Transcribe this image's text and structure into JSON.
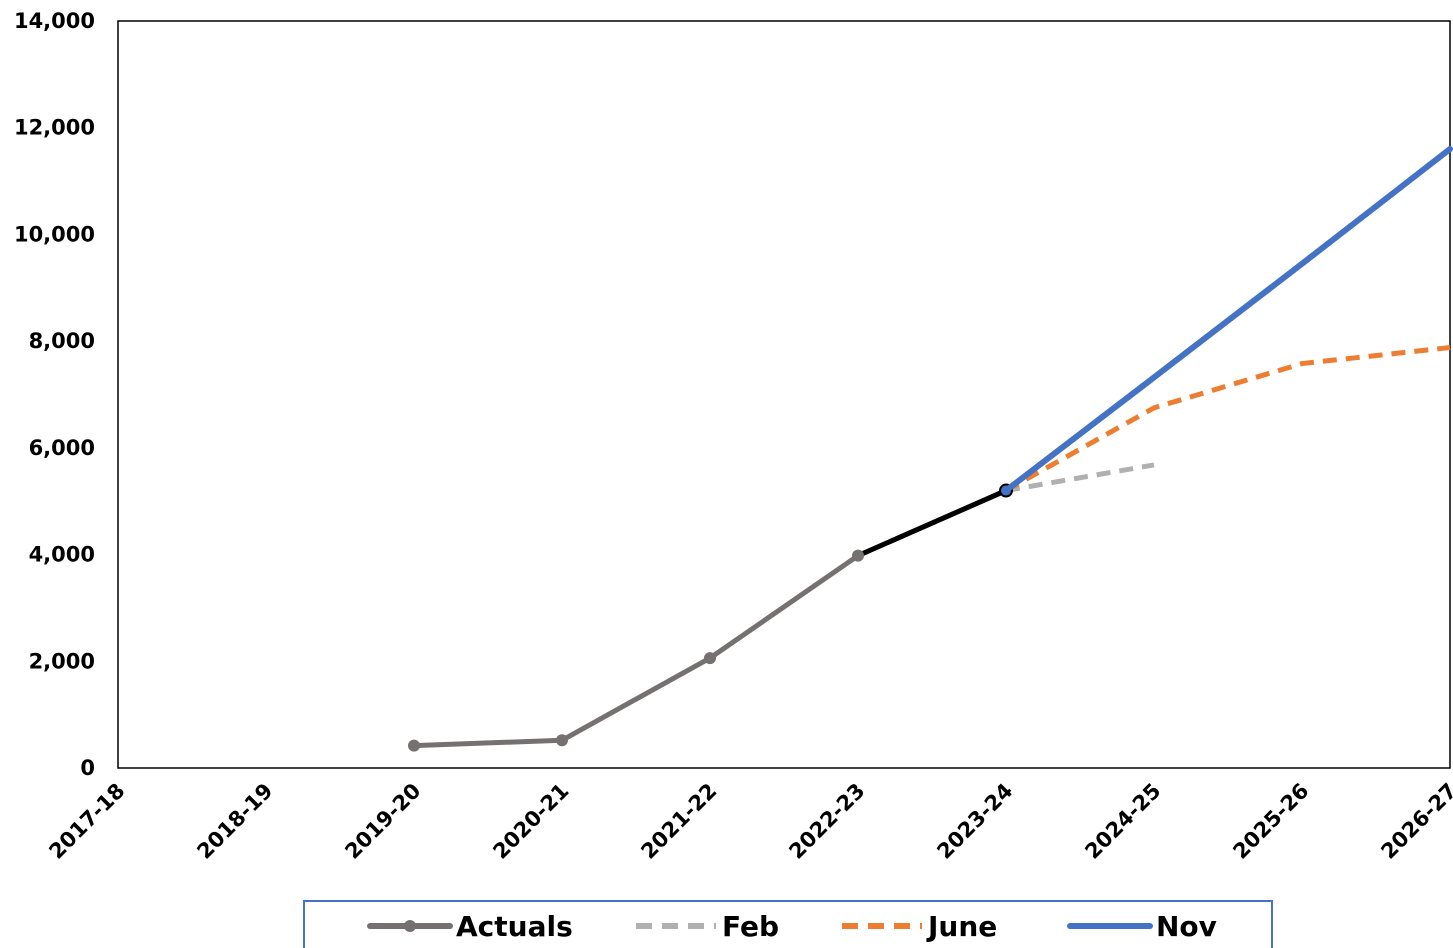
{
  "chart_data": {
    "type": "line",
    "categories": [
      "2017-18",
      "2018-19",
      "2019-20",
      "2020-21",
      "2021-22",
      "2022-23",
      "2023-24",
      "2024-25",
      "2025-26",
      "2026-27"
    ],
    "y_ticks": [
      "0",
      "2,000",
      "4,000",
      "6,000",
      "8,000",
      "10,000",
      "12,000",
      "14,000"
    ],
    "ylim": [
      0,
      14000
    ],
    "grid": false,
    "legend_position": "bottom",
    "series": [
      {
        "name": "Actuals",
        "color": "#767171",
        "style": "solid-markers",
        "values": [
          null,
          null,
          420,
          520,
          2060,
          3980,
          5200,
          null,
          null,
          null
        ]
      },
      {
        "name": "Feb",
        "color": "#b0b0b0",
        "style": "dashed",
        "values": [
          null,
          null,
          null,
          null,
          null,
          null,
          5200,
          5680,
          null,
          null
        ]
      },
      {
        "name": "June",
        "color": "#ed7d31",
        "style": "dashed",
        "values": [
          null,
          null,
          null,
          null,
          null,
          null,
          5200,
          6750,
          7580,
          7880
        ]
      },
      {
        "name": "Nov",
        "color": "#4472c4",
        "style": "solid",
        "values": [
          null,
          null,
          null,
          null,
          null,
          null,
          5200,
          7320,
          9450,
          11600
        ]
      }
    ],
    "highlight_segment": {
      "from": "2022-23",
      "to": "2023-24",
      "color": "#000000"
    }
  }
}
